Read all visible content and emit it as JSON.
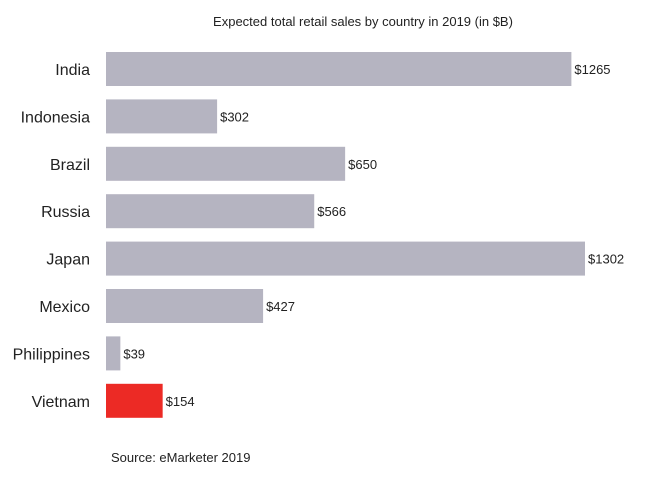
{
  "chart_data": {
    "type": "bar",
    "orientation": "horizontal",
    "title": "Expected total retail sales by country in 2019 (in $B)",
    "categories": [
      "India",
      "Indonesia",
      "Brazil",
      "Russia",
      "Japan",
      "Mexico",
      "Philippines",
      "Vietnam"
    ],
    "values": [
      1265,
      302,
      650,
      566,
      1302,
      427,
      39,
      154
    ],
    "data_labels": [
      "$1265",
      "$302",
      "$650",
      "$566",
      "$1302",
      "$427",
      "$39",
      "$154"
    ],
    "xlim": [
      0,
      1302
    ],
    "grid": false,
    "source": "Source: eMarketer 2019",
    "colors": {
      "default": "#b5b4c1",
      "highlight": "#ec2a25",
      "highlight_category": "Vietnam"
    }
  }
}
